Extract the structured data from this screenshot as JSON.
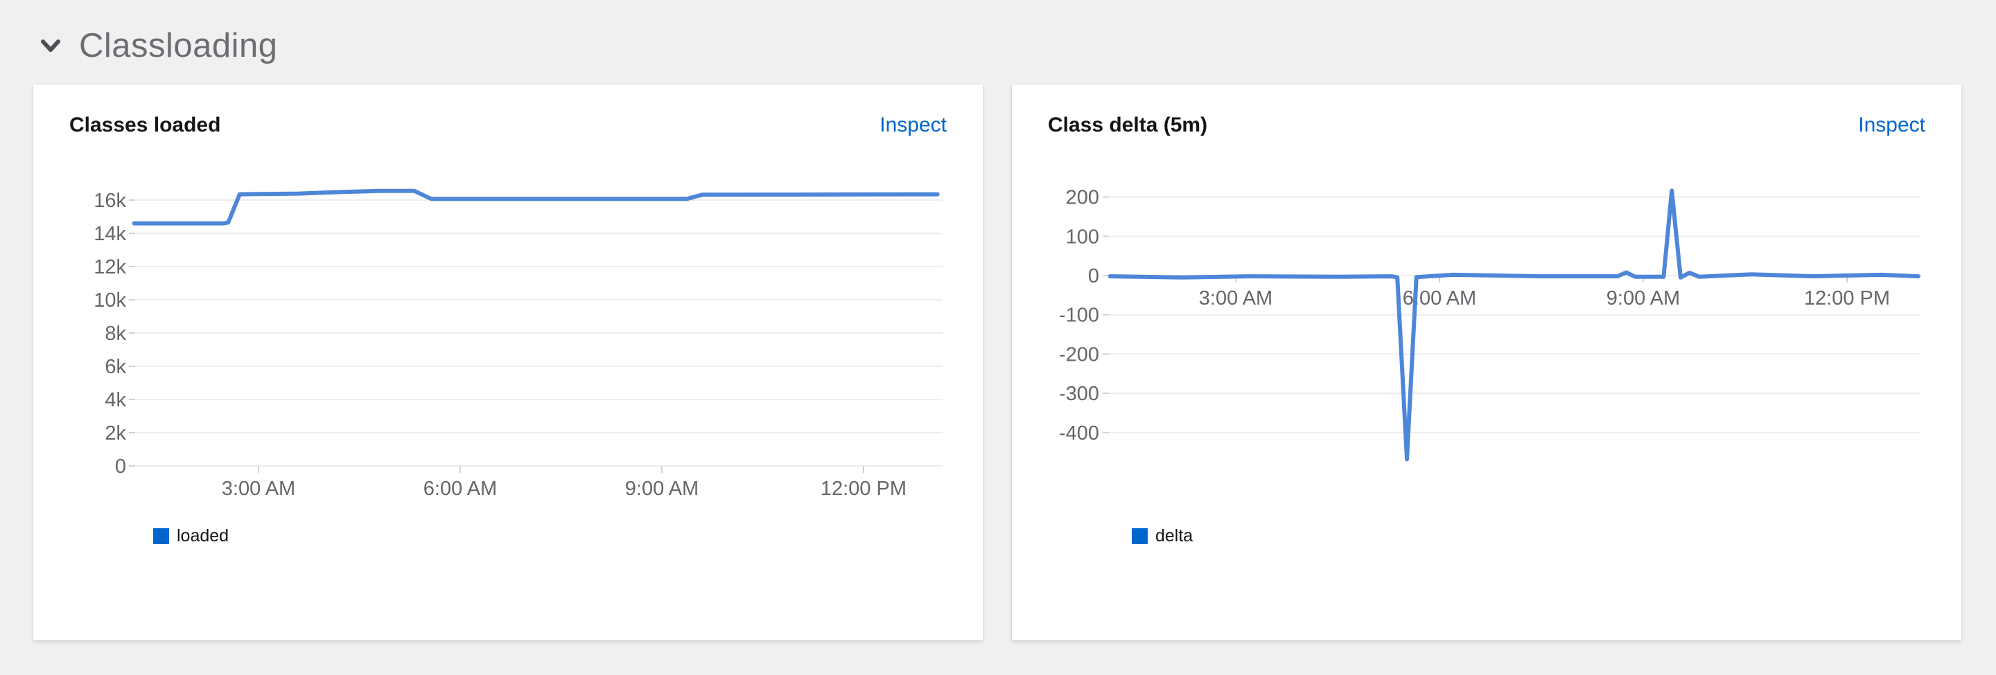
{
  "section": {
    "title": "Classloading",
    "chevron_icon": "chevron-down-icon",
    "expanded": true
  },
  "panels": [
    {
      "title": "Classes loaded",
      "action": "Inspect",
      "legend": [
        {
          "label": "loaded",
          "color": "#0066cc"
        }
      ]
    },
    {
      "title": "Class delta (5m)",
      "action": "Inspect",
      "legend": [
        {
          "label": "delta",
          "color": "#0066cc"
        }
      ]
    }
  ],
  "colors": {
    "background": "#f0f0f0",
    "card": "#ffffff",
    "line": "#4e86d8",
    "accent": "#0066cc",
    "link": "#0066cc",
    "grid": "#ededed",
    "tick": "#d2d2d2",
    "axis_label": "#63666a",
    "title_text": "#151515",
    "section_text": "#6a6e73"
  },
  "chart_data": [
    {
      "type": "line",
      "title": "Classes loaded",
      "xlabel": "",
      "ylabel": "",
      "x_unit": "hour-of-day",
      "xlim": [
        1.15,
        13.1
      ],
      "ylim": [
        0,
        16800
      ],
      "grid": "horizontal",
      "legend_position": "bottom-left",
      "xticks": [
        {
          "t": 3,
          "label": "3:00 AM"
        },
        {
          "t": 6,
          "label": "6:00 AM"
        },
        {
          "t": 9,
          "label": "9:00 AM"
        },
        {
          "t": 12,
          "label": "12:00 PM"
        }
      ],
      "yticks": [
        {
          "v": 16000,
          "label": "16k"
        },
        {
          "v": 14000,
          "label": "14k"
        },
        {
          "v": 12000,
          "label": "12k"
        },
        {
          "v": 10000,
          "label": "10k"
        },
        {
          "v": 8000,
          "label": "8k"
        },
        {
          "v": 6000,
          "label": "6k"
        },
        {
          "v": 4000,
          "label": "4k"
        },
        {
          "v": 2000,
          "label": "2k"
        },
        {
          "v": 0,
          "label": "0"
        }
      ],
      "series": [
        {
          "name": "loaded",
          "points": [
            [
              1.15,
              14600
            ],
            [
              2.48,
              14600
            ],
            [
              2.55,
              14650
            ],
            [
              2.72,
              16350
            ],
            [
              3.6,
              16390
            ],
            [
              4.25,
              16490
            ],
            [
              4.8,
              16550
            ],
            [
              5.32,
              16550
            ],
            [
              5.57,
              16070
            ],
            [
              7.5,
              16070
            ],
            [
              9.37,
              16070
            ],
            [
              9.6,
              16320
            ],
            [
              11.0,
              16330
            ],
            [
              13.1,
              16350
            ]
          ]
        }
      ]
    },
    {
      "type": "line",
      "title": "Class delta (5m)",
      "xlabel": "",
      "ylabel": "",
      "x_unit": "hour-of-day",
      "xlim": [
        1.15,
        13.05
      ],
      "ylim": [
        -470,
        230
      ],
      "grid": "horizontal",
      "legend_position": "bottom-left",
      "xticks": [
        {
          "t": 3,
          "label": "3:00 AM"
        },
        {
          "t": 6,
          "label": "6:00 AM"
        },
        {
          "t": 9,
          "label": "9:00 AM"
        },
        {
          "t": 12,
          "label": "12:00 PM"
        }
      ],
      "yticks": [
        {
          "v": 200,
          "label": "200"
        },
        {
          "v": 100,
          "label": "100"
        },
        {
          "v": 0,
          "label": "0"
        },
        {
          "v": -100,
          "label": "-100"
        },
        {
          "v": -200,
          "label": "-200"
        },
        {
          "v": -300,
          "label": "-300"
        },
        {
          "v": -400,
          "label": "-400"
        }
      ],
      "series": [
        {
          "name": "delta",
          "points": [
            [
              1.15,
              -2
            ],
            [
              2.2,
              -5
            ],
            [
              3.2,
              -2
            ],
            [
              4.5,
              -3
            ],
            [
              5.3,
              -2
            ],
            [
              5.38,
              -5
            ],
            [
              5.52,
              -468
            ],
            [
              5.66,
              -4
            ],
            [
              6.2,
              2
            ],
            [
              7.5,
              -2
            ],
            [
              8.62,
              -2
            ],
            [
              8.75,
              8
            ],
            [
              8.88,
              -3
            ],
            [
              9.3,
              -3
            ],
            [
              9.42,
              216
            ],
            [
              9.55,
              -5
            ],
            [
              9.68,
              7
            ],
            [
              9.82,
              -3
            ],
            [
              10.6,
              3
            ],
            [
              11.5,
              -2
            ],
            [
              12.5,
              2
            ],
            [
              13.05,
              -2
            ]
          ]
        }
      ]
    }
  ]
}
